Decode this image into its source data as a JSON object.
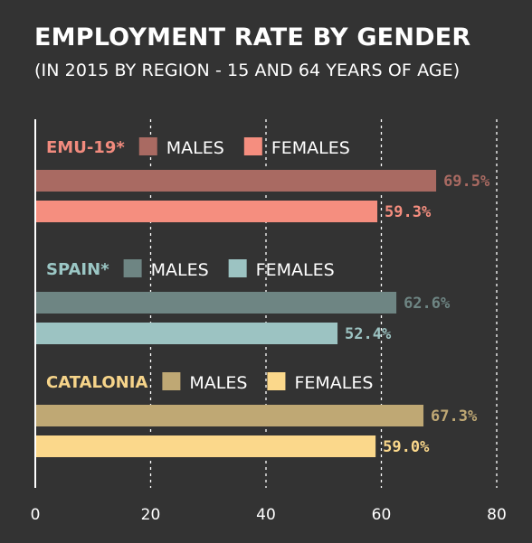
{
  "title": "EMPLOYMENT RATE BY GENDER",
  "subtitle": "(IN 2015 BY REGION - 15 AND 64 YEARS OF AGE)",
  "chart_data": {
    "type": "bar",
    "orientation": "horizontal",
    "xlim": [
      0,
      80
    ],
    "ticks": [
      0,
      20,
      40,
      60,
      80
    ],
    "grid": true,
    "groups": [
      {
        "name": "EMU-19*",
        "label_color": "#f28b7e",
        "series": [
          {
            "name": "MALES",
            "value": 69.5,
            "label": "69.5%",
            "color": "#a96a62"
          },
          {
            "name": "FEMALES",
            "value": 59.3,
            "label": "59.3%",
            "color": "#f58e7f"
          }
        ]
      },
      {
        "name": "SPAIN*",
        "label_color": "#9bc7c5",
        "series": [
          {
            "name": "MALES",
            "value": 62.6,
            "label": "62.6%",
            "color": "#6e8583"
          },
          {
            "name": "FEMALES",
            "value": 52.4,
            "label": "52.4%",
            "color": "#9cc3c2"
          }
        ]
      },
      {
        "name": "CATALONIA",
        "label_color": "#f6d48a",
        "series": [
          {
            "name": "MALES",
            "value": 67.3,
            "label": "67.3%",
            "color": "#bfa874"
          },
          {
            "name": "FEMALES",
            "value": 59.0,
            "label": "59.0%",
            "color": "#fbd88b"
          }
        ]
      }
    ]
  }
}
